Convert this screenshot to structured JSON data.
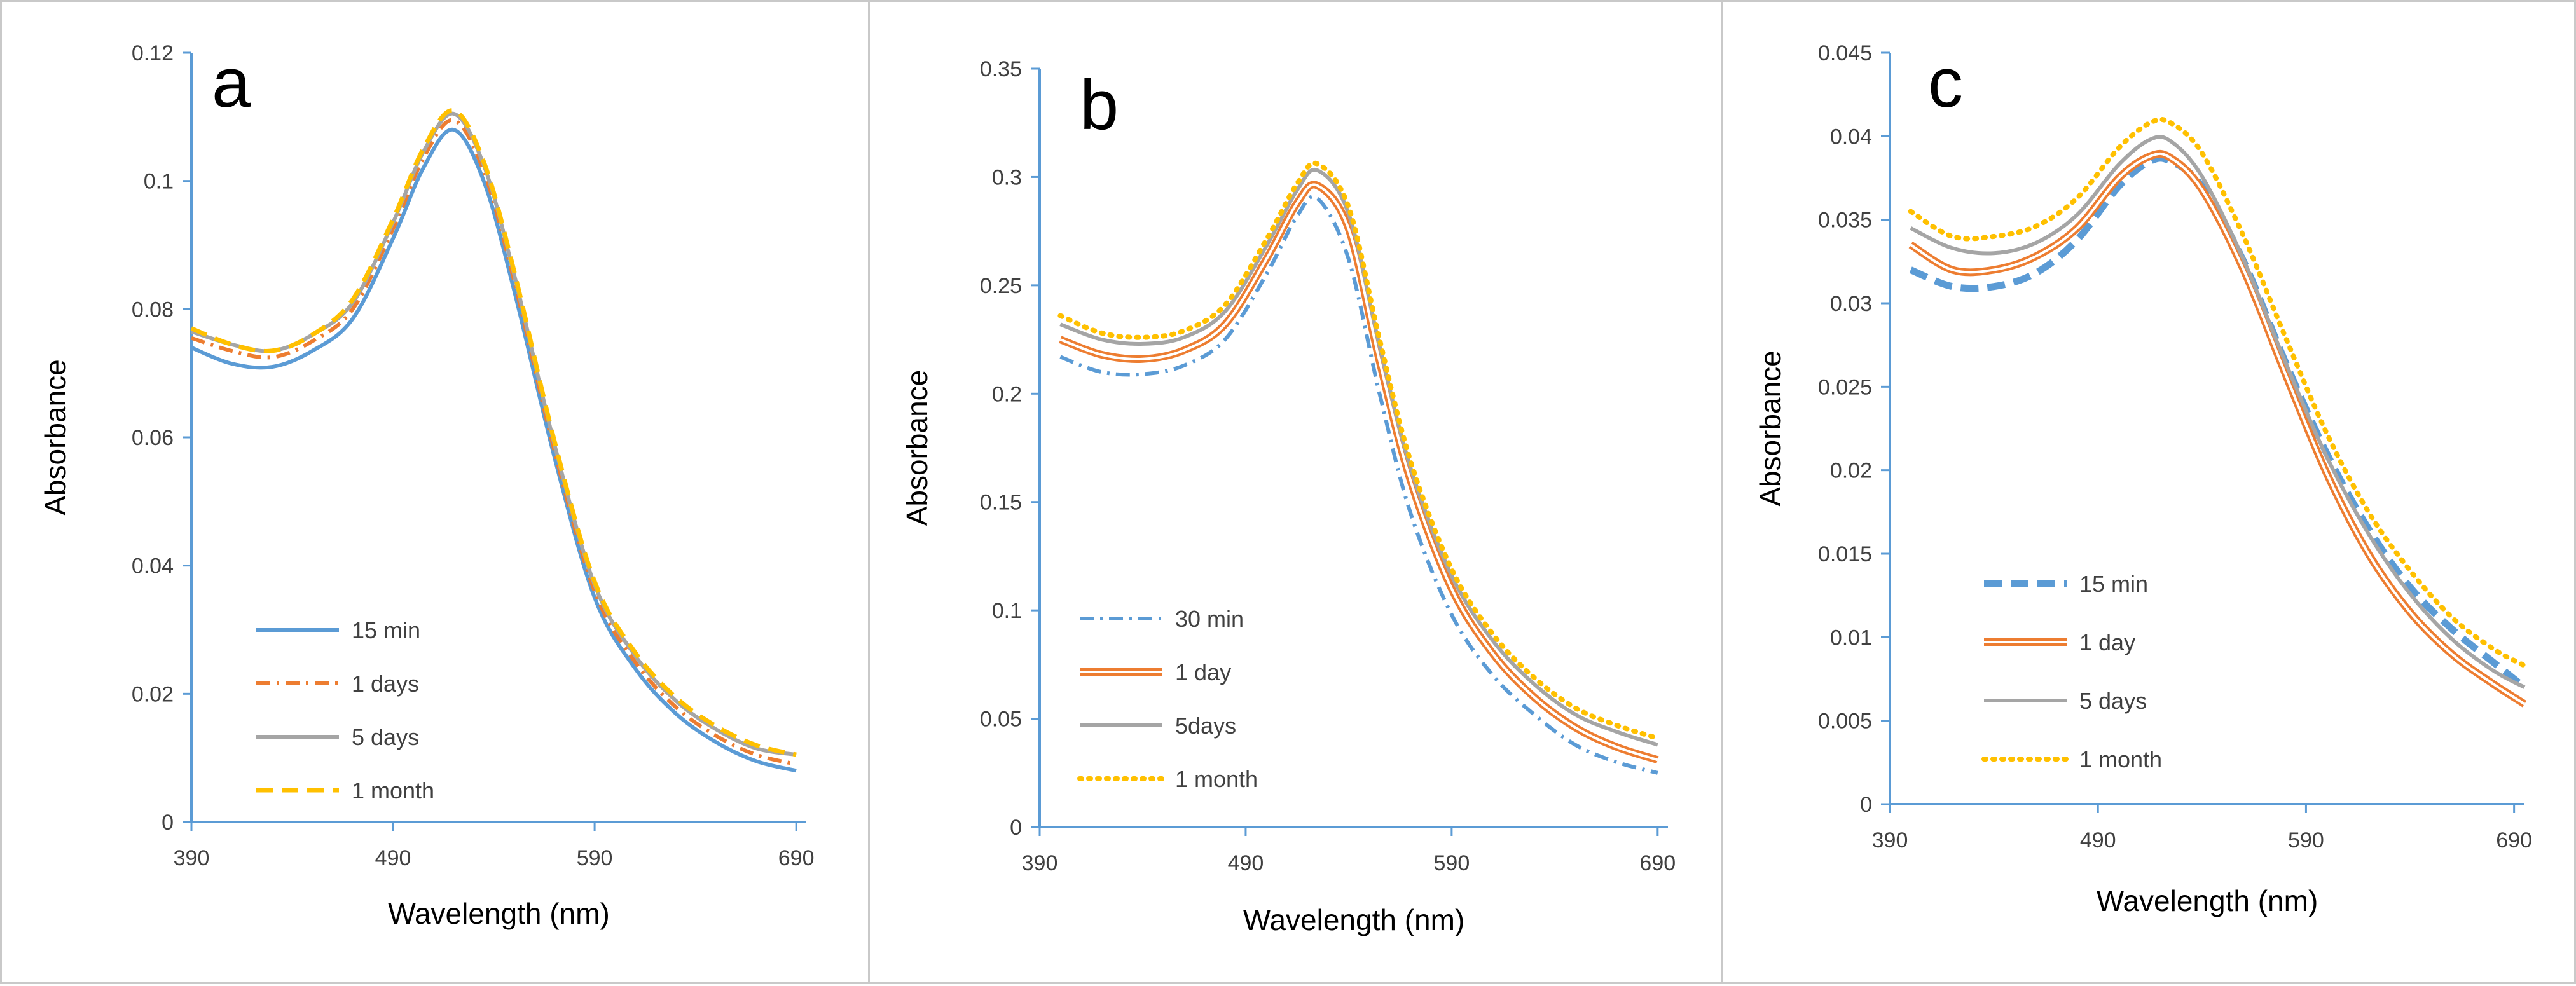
{
  "chart_data": [
    {
      "type": "line",
      "panel_label": "a",
      "xlabel": "Wavelength (nm)",
      "ylabel": "Absorbance",
      "xlim": [
        390,
        695
      ],
      "ylim": [
        0,
        0.12
      ],
      "xticks": [
        390,
        490,
        590,
        690
      ],
      "yticks": [
        0,
        0.02,
        0.04,
        0.06,
        0.08,
        0.1,
        0.12
      ],
      "ytick_labels": [
        "0",
        "0.02",
        "0.04",
        "0.06",
        "0.08",
        "0.1",
        "0.12"
      ],
      "legend_position": "bottom-center",
      "series": [
        {
          "name": "15 min",
          "color": "#5b9bd5",
          "style": "solid",
          "x": [
            390,
            410,
            430,
            450,
            470,
            490,
            505,
            520,
            535,
            550,
            570,
            590,
            610,
            630,
            650,
            670,
            690
          ],
          "y": [
            0.074,
            0.0715,
            0.071,
            0.0735,
            0.0785,
            0.091,
            0.102,
            0.108,
            0.1,
            0.083,
            0.057,
            0.035,
            0.024,
            0.017,
            0.0125,
            0.0095,
            0.008
          ]
        },
        {
          "name": "1 days",
          "color": "#ed7d31",
          "style": "dashdot",
          "x": [
            390,
            410,
            430,
            450,
            470,
            490,
            505,
            520,
            535,
            550,
            570,
            590,
            610,
            630,
            650,
            670,
            690
          ],
          "y": [
            0.0755,
            0.0735,
            0.0725,
            0.075,
            0.08,
            0.0925,
            0.1035,
            0.1095,
            0.1015,
            0.0845,
            0.058,
            0.036,
            0.025,
            0.018,
            0.0135,
            0.0105,
            0.009
          ]
        },
        {
          "name": "5 days",
          "color": "#a5a5a5",
          "style": "solid",
          "x": [
            390,
            410,
            430,
            450,
            470,
            490,
            505,
            520,
            535,
            550,
            570,
            590,
            610,
            630,
            650,
            670,
            690
          ],
          "y": [
            0.0765,
            0.0745,
            0.0735,
            0.076,
            0.081,
            0.0935,
            0.1045,
            0.1105,
            0.1025,
            0.0855,
            0.059,
            0.037,
            0.026,
            0.019,
            0.0145,
            0.0115,
            0.0105
          ]
        },
        {
          "name": "1 month",
          "color": "#ffc000",
          "style": "dashed",
          "x": [
            390,
            410,
            430,
            450,
            470,
            490,
            505,
            520,
            535,
            550,
            570,
            590,
            610,
            630,
            650,
            670,
            690
          ],
          "y": [
            0.077,
            0.0745,
            0.0735,
            0.076,
            0.0815,
            0.094,
            0.105,
            0.111,
            0.103,
            0.086,
            0.0595,
            0.0375,
            0.0265,
            0.0195,
            0.015,
            0.012,
            0.0105
          ]
        }
      ]
    },
    {
      "type": "line",
      "panel_label": "b",
      "xlabel": "Wavelength (nm)",
      "ylabel": "Absorbance",
      "xlim": [
        390,
        695
      ],
      "ylim": [
        0,
        0.35
      ],
      "xticks": [
        390,
        490,
        590,
        690
      ],
      "yticks": [
        0,
        0.05,
        0.1,
        0.15,
        0.2,
        0.25,
        0.3,
        0.35
      ],
      "ytick_labels": [
        "0",
        "0.05",
        "0.1",
        "0.15",
        "0.2",
        "0.25",
        "0.3",
        "0.35"
      ],
      "legend_position": "bottom-left",
      "series": [
        {
          "name": "30 min",
          "color": "#5b9bd5",
          "style": "dashdot",
          "x": [
            400,
            420,
            440,
            460,
            480,
            500,
            515,
            525,
            540,
            555,
            570,
            590,
            610,
            630,
            650,
            670,
            690
          ],
          "y": [
            0.217,
            0.21,
            0.209,
            0.213,
            0.225,
            0.255,
            0.282,
            0.29,
            0.262,
            0.2,
            0.145,
            0.098,
            0.07,
            0.052,
            0.038,
            0.03,
            0.025
          ]
        },
        {
          "name": "1 day",
          "color": "#ed7d31",
          "style": "double",
          "x": [
            400,
            420,
            440,
            460,
            480,
            500,
            515,
            525,
            540,
            555,
            570,
            590,
            610,
            630,
            650,
            670,
            690
          ],
          "y": [
            0.225,
            0.218,
            0.216,
            0.22,
            0.232,
            0.262,
            0.288,
            0.296,
            0.276,
            0.215,
            0.16,
            0.11,
            0.08,
            0.06,
            0.046,
            0.037,
            0.031
          ]
        },
        {
          "name": "5days",
          "color": "#a5a5a5",
          "style": "solid",
          "x": [
            400,
            420,
            440,
            460,
            480,
            500,
            515,
            525,
            540,
            555,
            570,
            590,
            610,
            630,
            650,
            670,
            690
          ],
          "y": [
            0.232,
            0.225,
            0.223,
            0.226,
            0.238,
            0.268,
            0.294,
            0.303,
            0.283,
            0.222,
            0.166,
            0.116,
            0.086,
            0.066,
            0.052,
            0.044,
            0.038
          ]
        },
        {
          "name": "1 month",
          "color": "#ffc000",
          "style": "dotted",
          "x": [
            400,
            420,
            440,
            460,
            480,
            500,
            515,
            525,
            540,
            555,
            570,
            590,
            610,
            630,
            650,
            670,
            690
          ],
          "y": [
            0.236,
            0.228,
            0.226,
            0.229,
            0.241,
            0.271,
            0.297,
            0.306,
            0.286,
            0.225,
            0.169,
            0.119,
            0.089,
            0.069,
            0.055,
            0.047,
            0.041
          ]
        }
      ]
    },
    {
      "type": "line",
      "panel_label": "c",
      "xlabel": "Wavelength (nm)",
      "ylabel": "Absorbance",
      "xlim": [
        390,
        695
      ],
      "ylim": [
        0,
        0.045
      ],
      "xticks": [
        390,
        490,
        590,
        690
      ],
      "yticks": [
        0,
        0.005,
        0.01,
        0.015,
        0.02,
        0.025,
        0.03,
        0.035,
        0.04,
        0.045
      ],
      "ytick_labels": [
        "0",
        "0.005",
        "0.01",
        "0.015",
        "0.02",
        "0.025",
        "0.03",
        "0.035",
        "0.04",
        "0.045"
      ],
      "legend_position": "bottom-left",
      "series": [
        {
          "name": "15 min",
          "color": "#5b9bd5",
          "style": "dashed-bold",
          "x": [
            400,
            420,
            440,
            460,
            480,
            500,
            515,
            525,
            540,
            560,
            580,
            600,
            620,
            640,
            660,
            680,
            695
          ],
          "y": [
            0.032,
            0.031,
            0.031,
            0.0318,
            0.0338,
            0.037,
            0.0385,
            0.0385,
            0.037,
            0.0325,
            0.0265,
            0.021,
            0.0165,
            0.013,
            0.0105,
            0.0085,
            0.007
          ]
        },
        {
          "name": "1 day",
          "color": "#ed7d31",
          "style": "double",
          "x": [
            400,
            420,
            440,
            460,
            480,
            500,
            515,
            525,
            540,
            560,
            580,
            600,
            620,
            640,
            660,
            680,
            695
          ],
          "y": [
            0.0335,
            0.032,
            0.032,
            0.0328,
            0.0345,
            0.0375,
            0.0388,
            0.0387,
            0.0368,
            0.032,
            0.0258,
            0.0198,
            0.015,
            0.0115,
            0.009,
            0.0072,
            0.006
          ]
        },
        {
          "name": "5 days",
          "color": "#a5a5a5",
          "style": "solid",
          "x": [
            400,
            420,
            440,
            460,
            480,
            500,
            515,
            525,
            540,
            560,
            580,
            600,
            620,
            640,
            660,
            680,
            695
          ],
          "y": [
            0.0345,
            0.0333,
            0.033,
            0.0336,
            0.0353,
            0.0383,
            0.0398,
            0.0397,
            0.0376,
            0.0326,
            0.0265,
            0.0208,
            0.0162,
            0.0126,
            0.0099,
            0.008,
            0.007
          ]
        },
        {
          "name": "1 month",
          "color": "#ffc000",
          "style": "dotted",
          "x": [
            400,
            420,
            440,
            460,
            480,
            500,
            515,
            525,
            540,
            560,
            580,
            600,
            620,
            640,
            660,
            680,
            695
          ],
          "y": [
            0.0355,
            0.034,
            0.034,
            0.0346,
            0.0363,
            0.0393,
            0.0408,
            0.0408,
            0.039,
            0.034,
            0.028,
            0.0222,
            0.0175,
            0.014,
            0.0112,
            0.0093,
            0.0083
          ]
        }
      ]
    }
  ]
}
